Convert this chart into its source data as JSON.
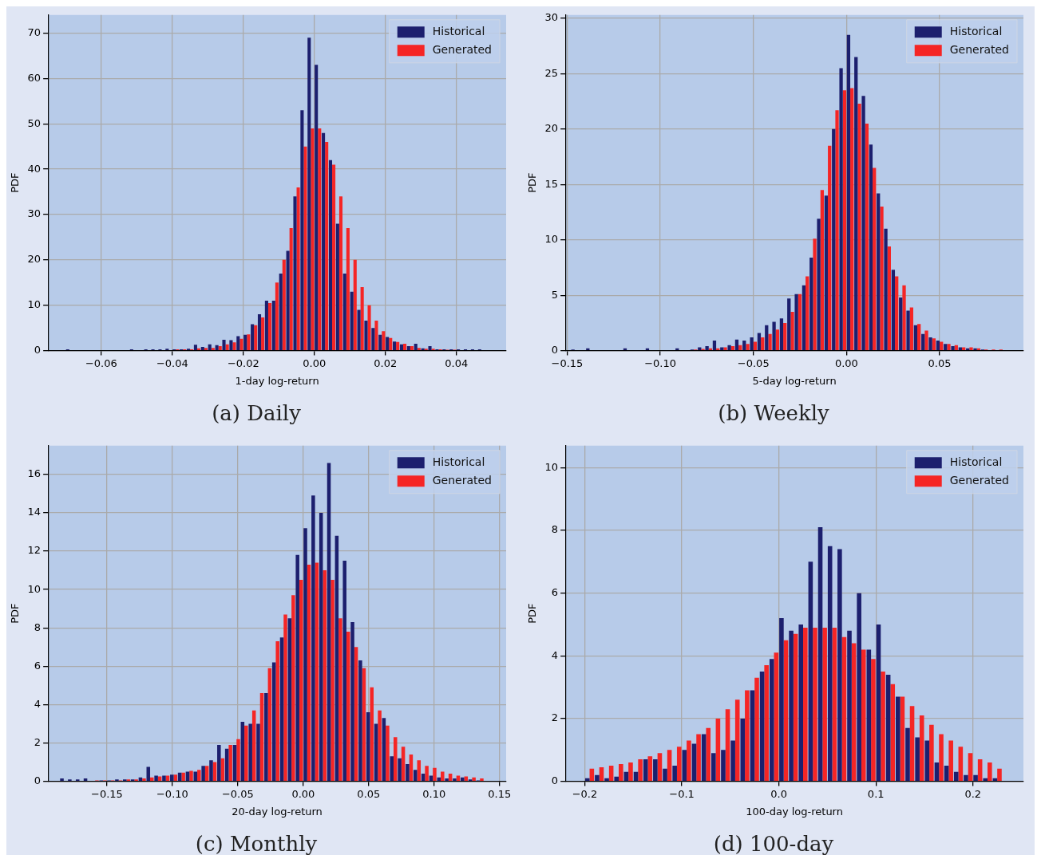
{
  "chart_data": [
    {
      "type": "histogram",
      "title": "(a) Daily",
      "xlabel": "1-day log-return",
      "ylabel": "PDF",
      "grid": true,
      "legend": "top right",
      "xlim": [
        -0.075,
        0.054
      ],
      "ylim": [
        0,
        74
      ],
      "xticks": [
        {
          "value": -0.06,
          "label": "−0.06"
        },
        {
          "value": -0.04,
          "label": "−0.04"
        },
        {
          "value": -0.02,
          "label": "−0.02"
        },
        {
          "value": 0,
          "label": "0.00"
        },
        0.02,
        0.04
      ],
      "yticks": [
        0,
        10,
        20,
        30,
        40,
        50,
        60,
        70
      ],
      "bins": [
        -0.07,
        -0.068,
        -0.066,
        -0.064,
        -0.062,
        -0.06,
        -0.058,
        -0.056,
        -0.054,
        -0.052,
        -0.05,
        -0.048,
        -0.046,
        -0.044,
        -0.042,
        -0.04,
        -0.038,
        -0.036,
        -0.034,
        -0.032,
        -0.03,
        -0.028,
        -0.026,
        -0.024,
        -0.022,
        -0.02,
        -0.018,
        -0.016,
        -0.014,
        -0.012,
        -0.01,
        -0.008,
        -0.006,
        -0.004,
        -0.002,
        0,
        0.002,
        0.004,
        0.006,
        0.008,
        0.01,
        0.012,
        0.014,
        0.016,
        0.018,
        0.02,
        0.022,
        0.024,
        0.026,
        0.028,
        0.03,
        0.032,
        0.034,
        0.036,
        0.038,
        0.04,
        0.042,
        0.044,
        0.046,
        0.048
      ],
      "series": [
        {
          "name": "Historical",
          "color": "#1c1f6e",
          "values": [
            0.3,
            0,
            0,
            0,
            0,
            0,
            0,
            0,
            0,
            0.3,
            0,
            0.3,
            0.3,
            0.3,
            0.4,
            0.3,
            0.3,
            0.4,
            1.3,
            0.8,
            1.4,
            1.2,
            2.4,
            2.3,
            3.2,
            3.5,
            5.8,
            8,
            11,
            11,
            17,
            22,
            34,
            53,
            69,
            63,
            48,
            42,
            28,
            17,
            13,
            9,
            6.6,
            5,
            3.5,
            3,
            2,
            1.4,
            1,
            1.5,
            0.5,
            1,
            0.3,
            0.3,
            0.3,
            0.3,
            0.3,
            0.3,
            0.3
          ]
        },
        {
          "name": "Generated",
          "color": "#f52525",
          "values": [
            0,
            0,
            0,
            0,
            0,
            0,
            0,
            0,
            0,
            0,
            0,
            0,
            0,
            0,
            0,
            0.3,
            0.3,
            0.3,
            0.5,
            0.6,
            0.6,
            1,
            1.4,
            1.8,
            2.6,
            3.6,
            5.6,
            7.3,
            10.5,
            15,
            20,
            27,
            36,
            45,
            49,
            49,
            46,
            41,
            34,
            27,
            20,
            14,
            10,
            6.6,
            4.3,
            2.8,
            1.9,
            1.5,
            1,
            0.6,
            0.4,
            0.4,
            0.3,
            0.2,
            0.2,
            0,
            0,
            0,
            0
          ]
        }
      ]
    },
    {
      "type": "histogram",
      "title": "(b) Weekly",
      "xlabel": "5-day log-return",
      "ylabel": "PDF",
      "grid": true,
      "legend": "top right",
      "xlim": [
        -0.151,
        0.095
      ],
      "ylim": [
        0,
        30.3
      ],
      "xticks": [
        {
          "value": -0.15,
          "label": "−0.15"
        },
        {
          "value": -0.1,
          "label": "−0.10"
        },
        {
          "value": -0.05,
          "label": "−0.05"
        },
        {
          "value": 0,
          "label": "0.00"
        },
        0.05
      ],
      "yticks": [
        0,
        5,
        10,
        15,
        20,
        25,
        30
      ],
      "bins": [
        -0.148,
        -0.144,
        -0.14,
        -0.136,
        -0.132,
        -0.128,
        -0.124,
        -0.12,
        -0.116,
        -0.112,
        -0.108,
        -0.104,
        -0.1,
        -0.096,
        -0.092,
        -0.088,
        -0.084,
        -0.08,
        -0.076,
        -0.072,
        -0.068,
        -0.064,
        -0.06,
        -0.056,
        -0.052,
        -0.048,
        -0.044,
        -0.04,
        -0.036,
        -0.032,
        -0.028,
        -0.024,
        -0.02,
        -0.016,
        -0.012,
        -0.008,
        -0.004,
        0,
        0.004,
        0.008,
        0.012,
        0.016,
        0.02,
        0.024,
        0.028,
        0.032,
        0.036,
        0.04,
        0.044,
        0.048,
        0.052,
        0.056,
        0.06,
        0.064,
        0.068,
        0.072,
        0.076,
        0.08,
        0.084
      ],
      "series": [
        {
          "name": "Historical",
          "color": "#1c1f6e",
          "values": [
            0.1,
            0,
            0.2,
            0,
            0,
            0,
            0,
            0.2,
            0,
            0,
            0.2,
            0,
            0,
            0,
            0.2,
            0,
            0.1,
            0.3,
            0.4,
            0.9,
            0.3,
            0.5,
            1,
            0.9,
            1.2,
            1.6,
            2.3,
            2.6,
            2.9,
            4.7,
            5.1,
            5.9,
            8.4,
            11.9,
            14,
            20,
            25.5,
            28.5,
            26.5,
            23,
            18.6,
            14.2,
            11,
            7.3,
            4.8,
            3.6,
            2.3,
            1.5,
            1.2,
            0.9,
            0.6,
            0.4,
            0.3,
            0.2,
            0.2,
            0.1,
            0,
            0
          ]
        },
        {
          "name": "Generated",
          "color": "#f52525",
          "values": [
            0,
            0,
            0,
            0,
            0,
            0,
            0,
            0,
            0,
            0,
            0,
            0,
            0,
            0,
            0,
            0,
            0.1,
            0.15,
            0.2,
            0.2,
            0.3,
            0.4,
            0.5,
            0.6,
            0.8,
            1.2,
            1.5,
            1.9,
            2.5,
            3.5,
            5.1,
            6.7,
            10.1,
            14.5,
            18.5,
            21.7,
            23.5,
            23.7,
            22.3,
            20.5,
            16.5,
            13,
            9.4,
            6.7,
            5.9,
            3.9,
            2.4,
            1.8,
            1.1,
            0.8,
            0.6,
            0.5,
            0.3,
            0.3,
            0.2,
            0.1,
            0.1,
            0.1
          ]
        }
      ]
    },
    {
      "type": "histogram",
      "title": "(c) Monthly",
      "xlabel": "20-day log-return",
      "ylabel": "PDF",
      "grid": true,
      "legend": "top right",
      "xlim": [
        -0.195,
        0.155
      ],
      "ylim": [
        0,
        17.5
      ],
      "xticks": [
        {
          "value": -0.15,
          "label": "−0.15"
        },
        {
          "value": -0.1,
          "label": "−0.10"
        },
        {
          "value": -0.05,
          "label": "−0.05"
        },
        {
          "value": 0,
          "label": "0.00"
        },
        0.05,
        {
          "value": 0.1,
          "label": "0.10"
        },
        0.15
      ],
      "yticks": [
        0,
        2,
        4,
        6,
        8,
        10,
        12,
        14,
        16
      ],
      "bins": [
        -0.186,
        -0.18,
        -0.174,
        -0.168,
        -0.162,
        -0.156,
        -0.15,
        -0.144,
        -0.138,
        -0.132,
        -0.126,
        -0.12,
        -0.114,
        -0.108,
        -0.102,
        -0.096,
        -0.09,
        -0.084,
        -0.078,
        -0.072,
        -0.066,
        -0.06,
        -0.054,
        -0.048,
        -0.042,
        -0.036,
        -0.03,
        -0.024,
        -0.018,
        -0.012,
        -0.006,
        0,
        0.006,
        0.012,
        0.018,
        0.024,
        0.03,
        0.036,
        0.042,
        0.048,
        0.054,
        0.06,
        0.066,
        0.072,
        0.078,
        0.084,
        0.09,
        0.096,
        0.102,
        0.108,
        0.114,
        0.12,
        0.126,
        0.132,
        0.138
      ],
      "series": [
        {
          "name": "Historical",
          "color": "#1c1f6e",
          "values": [
            0.15,
            0.1,
            0.1,
            0.15,
            0,
            0.05,
            0.05,
            0.1,
            0.1,
            0.1,
            0.2,
            0.75,
            0.3,
            0.3,
            0.35,
            0.45,
            0.5,
            0.5,
            0.8,
            1.1,
            1.9,
            1.7,
            1.9,
            3.1,
            3,
            3,
            4.6,
            6.2,
            7.5,
            8.5,
            11.8,
            13.2,
            14.9,
            14,
            16.6,
            12.8,
            11.5,
            8.3,
            6.3,
            3.6,
            3,
            3.3,
            1.3,
            1.2,
            0.9,
            0.6,
            0.4,
            0.3,
            0.2,
            0.15,
            0.15,
            0.2,
            0.1,
            0.05
          ]
        },
        {
          "name": "Generated",
          "color": "#f52525",
          "values": [
            0,
            0,
            0,
            0,
            0.05,
            0.05,
            0.05,
            0.05,
            0.1,
            0.1,
            0.15,
            0.2,
            0.25,
            0.3,
            0.35,
            0.45,
            0.55,
            0.6,
            0.8,
            1,
            1.2,
            1.9,
            2.2,
            2.9,
            3.7,
            4.6,
            5.9,
            7.3,
            8.7,
            9.7,
            10.5,
            11.3,
            11.4,
            11,
            10.5,
            8.5,
            7.8,
            7,
            5.9,
            4.9,
            3.7,
            2.9,
            2.3,
            1.8,
            1.4,
            1.1,
            0.8,
            0.7,
            0.5,
            0.4,
            0.3,
            0.25,
            0.2,
            0.15
          ]
        }
      ]
    },
    {
      "type": "histogram",
      "title": "(d) 100-day",
      "xlabel": "100-day log-return",
      "ylabel": "PDF",
      "grid": true,
      "legend": "top right",
      "xlim": [
        -0.22,
        0.252
      ],
      "ylim": [
        0,
        10.7
      ],
      "xticks": [
        {
          "value": -0.2,
          "label": "−0.2"
        },
        {
          "value": -0.1,
          "label": "−0.1"
        },
        {
          "value": 0,
          "label": "0.0"
        },
        0.1,
        0.2
      ],
      "yticks": [
        0,
        2,
        4,
        6,
        8,
        10
      ],
      "bins": [
        -0.2,
        -0.19,
        -0.18,
        -0.17,
        -0.16,
        -0.15,
        -0.14,
        -0.13,
        -0.12,
        -0.11,
        -0.1,
        -0.09,
        -0.08,
        -0.07,
        -0.06,
        -0.05,
        -0.04,
        -0.03,
        -0.02,
        -0.01,
        0,
        0.01,
        0.02,
        0.03,
        0.04,
        0.05,
        0.06,
        0.07,
        0.08,
        0.09,
        0.1,
        0.11,
        0.12,
        0.13,
        0.14,
        0.15,
        0.16,
        0.17,
        0.18,
        0.19,
        0.2,
        0.21,
        0.22,
        0.23
      ],
      "series": [
        {
          "name": "Historical",
          "color": "#1c1f6e",
          "values": [
            0.1,
            0.2,
            0.1,
            0.15,
            0.3,
            0.3,
            0.7,
            0.7,
            0.4,
            0.5,
            1,
            1.2,
            1.5,
            0.9,
            1,
            1.3,
            2,
            2.9,
            3.5,
            3.9,
            5.2,
            4.8,
            5,
            7,
            8.1,
            7.5,
            7.4,
            4.8,
            6,
            4.2,
            5,
            3.4,
            2.7,
            1.7,
            1.4,
            1.3,
            0.6,
            0.5,
            0.3,
            0.2,
            0.2,
            0.1,
            0.1
          ]
        },
        {
          "name": "Generated",
          "color": "#f52525",
          "values": [
            0.4,
            0.45,
            0.5,
            0.55,
            0.6,
            0.7,
            0.8,
            0.9,
            1,
            1.1,
            1.3,
            1.5,
            1.7,
            2,
            2.3,
            2.6,
            2.9,
            3.3,
            3.7,
            4.1,
            4.5,
            4.7,
            4.9,
            4.9,
            4.9,
            4.9,
            4.6,
            4.4,
            4.2,
            3.9,
            3.5,
            3.1,
            2.7,
            2.4,
            2.1,
            1.8,
            1.5,
            1.3,
            1.1,
            0.9,
            0.7,
            0.6,
            0.4
          ]
        }
      ]
    }
  ]
}
